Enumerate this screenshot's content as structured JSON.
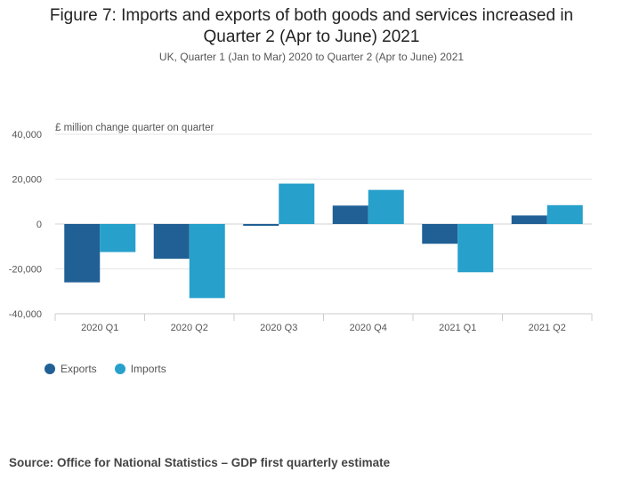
{
  "header": {
    "title": "Figure 7: Imports and exports of both goods and services increased in Quarter 2 (Apr to June) 2021",
    "subtitle": "UK, Quarter 1 (Jan to Mar) 2020 to Quarter 2 (Apr to June) 2021"
  },
  "footer": {
    "source": "Source: Office for National Statistics – GDP first quarterly estimate"
  },
  "chart_data": {
    "type": "bar",
    "ylabel": "£ million change quarter on quarter",
    "categories": [
      "2020 Q1",
      "2020 Q2",
      "2020 Q3",
      "2020 Q4",
      "2021 Q1",
      "2021 Q2"
    ],
    "series": [
      {
        "name": "Exports",
        "color": "#206095",
        "values": [
          -26000,
          -15500,
          -800,
          8200,
          -8800,
          3800
        ]
      },
      {
        "name": "Imports",
        "color": "#27a0cc",
        "values": [
          -12500,
          -33000,
          18000,
          15200,
          -21500,
          8400
        ]
      }
    ],
    "ylim": [
      -40000,
      40000
    ],
    "yticks": [
      40000,
      20000,
      0,
      -20000,
      -40000
    ],
    "ytick_labels": [
      "40,000",
      "20,000",
      "0",
      "-20,000",
      "-40,000"
    ],
    "grid": true,
    "legend_position": "bottom-left"
  }
}
